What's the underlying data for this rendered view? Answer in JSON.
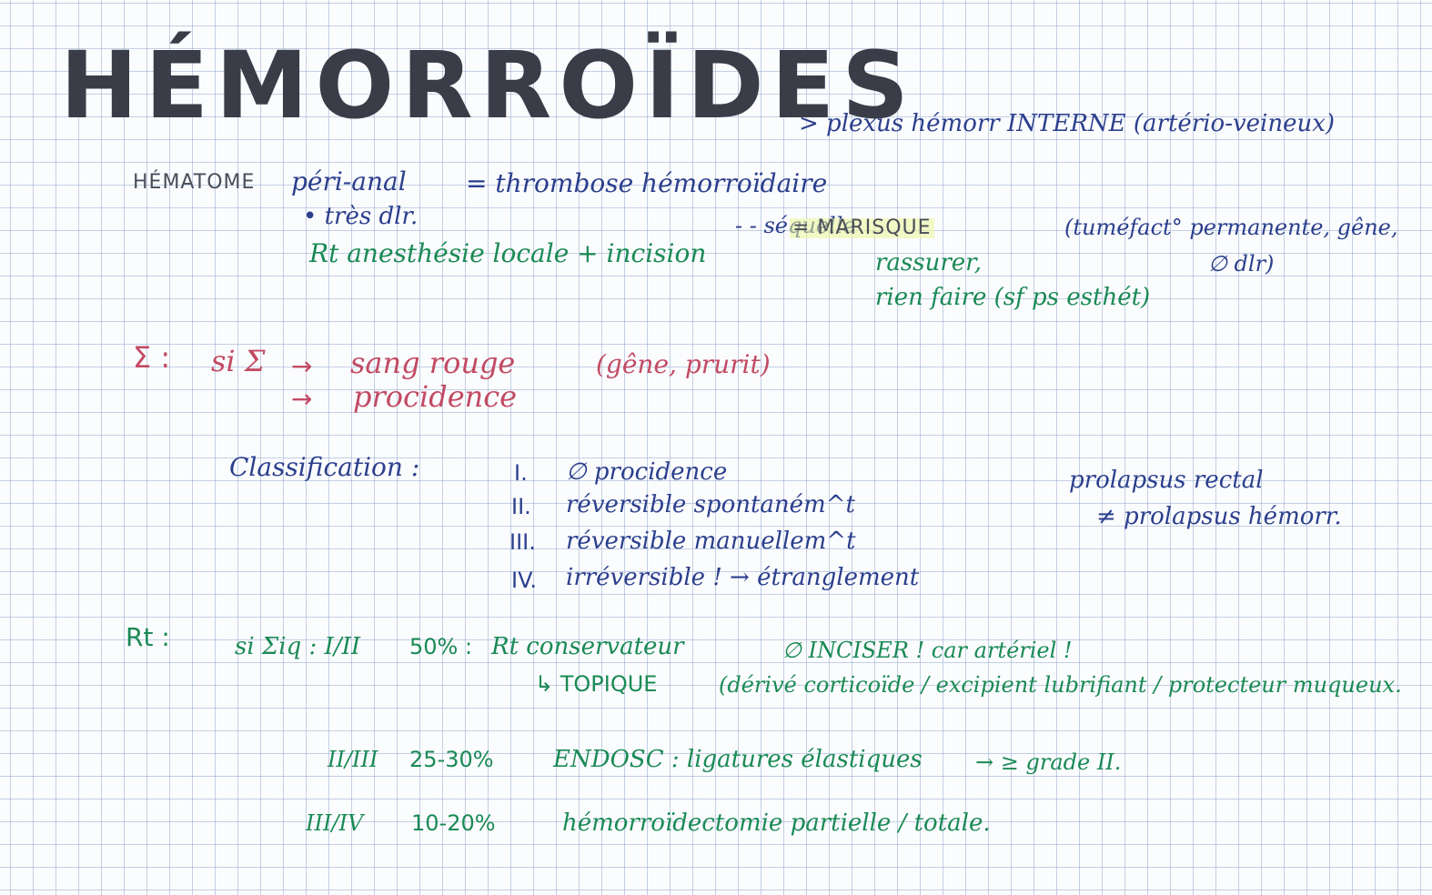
{
  "title": "HÉMORROÏDES",
  "subtitle": "> plexus hémorr INTERNE (artério-veineux)",
  "hematome": {
    "label": "HÉMATOME",
    "location": "péri-anal",
    "definition": "= thrombose hémorroïdaire",
    "bullet": "• très dlr.",
    "treatment": "Rt anesthésie locale + incision",
    "sequel_lead": "- - séquelle",
    "sequel_label": "= MARISQUE",
    "sequel_desc": "(tuméfact° permanente, gêne,",
    "sequel_desc2": "∅ dlr)",
    "sequel_notes": [
      "rassurer,",
      "rien faire (sf ps esthét)"
    ]
  },
  "signs": {
    "label": "Σ :",
    "prefix": "si Σ",
    "arrow1": "→",
    "item1": "sang rouge",
    "extra": "(gêne, prurit)",
    "arrow2": "→",
    "item2": "procidence"
  },
  "classification": {
    "label": "Classification :",
    "items": [
      {
        "num": "I.",
        "text": "∅ procidence"
      },
      {
        "num": "II.",
        "text": "réversible spontaném^t"
      },
      {
        "num": "III.",
        "text": "réversible manuellem^t"
      },
      {
        "num": "IV.",
        "text": "irréversible ! → étranglement"
      }
    ],
    "side_note": [
      "prolapsus rectal",
      "≠ prolapsus hémorr."
    ]
  },
  "treatment": {
    "label": "Rt :",
    "rows": [
      {
        "grade": "si Σiq : I/II",
        "pct": "50% :",
        "action": "Rt conservateur",
        "note": "∅ INCISER ! car artériel !"
      },
      {
        "grade": "II/III",
        "pct": "25-30%",
        "action": "ENDOSC : ligatures élastiques",
        "note": "→ ≥ grade II."
      },
      {
        "grade": "III/IV",
        "pct": "10-20%",
        "action": "hémorroïdectomie partielle / totale.",
        "note": ""
      }
    ],
    "topique": "↳ TOPIQUE",
    "topique_desc": "(dérivé corticoïde / excipient lubrifiant / protecteur muqueux."
  },
  "colors": {
    "navy": "#2b3f8c",
    "green": "#1a8a55",
    "red": "#c24a63",
    "grey": "#4a4e5a"
  }
}
